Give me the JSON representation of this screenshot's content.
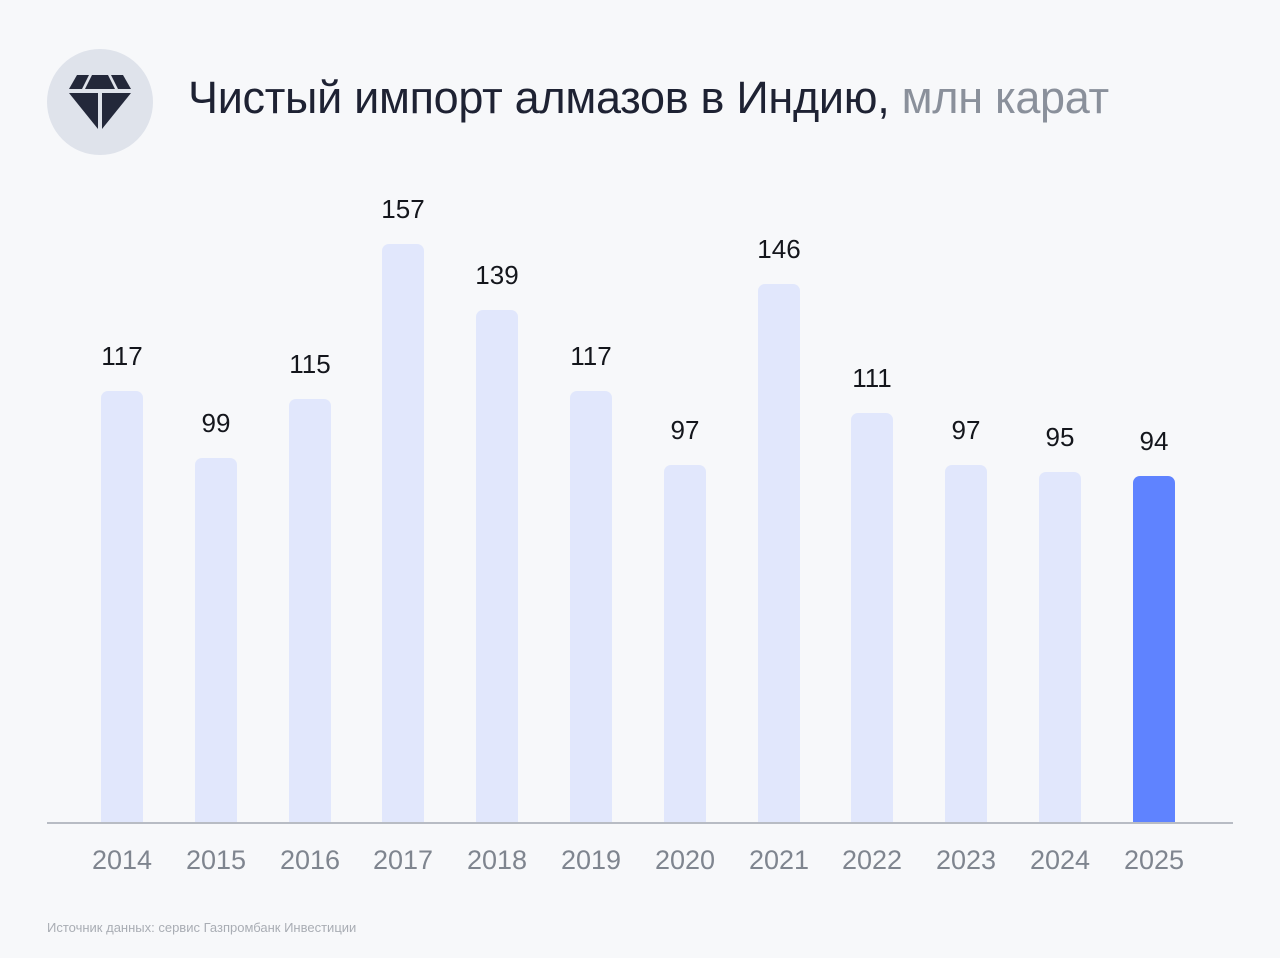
{
  "header": {
    "icon": "diamond-icon",
    "title_main": "Чистый импорт алмазов в Индию,",
    "title_unit": " млн карат"
  },
  "footer": {
    "source": "Источник данных: сервис Газпромбанк Инвестиции"
  },
  "colors": {
    "background": "#f7f8fa",
    "bar": "#e1e7fc",
    "bar_highlight": "#5f83ff",
    "icon_bg": "#dfe3eb",
    "icon_fg": "#23283a",
    "title": "#1e2233",
    "unit": "#8a909b",
    "axis_labels": "#7f858f"
  },
  "chart_data": {
    "type": "bar",
    "title": "Чистый импорт алмазов в Индию, млн карат",
    "xlabel": "",
    "ylabel": "млн карат",
    "categories": [
      "2014",
      "2015",
      "2016",
      "2017",
      "2018",
      "2019",
      "2020",
      "2021",
      "2022",
      "2023",
      "2024",
      "2025"
    ],
    "values": [
      117,
      99,
      115,
      157,
      139,
      117,
      97,
      146,
      111,
      97,
      95,
      94
    ],
    "highlight_index": 11,
    "data_labels": true,
    "grid": false,
    "legend": null,
    "ylim": [
      0,
      160
    ],
    "source": "Источник данных: сервис Газпромбанк Инвестиции"
  }
}
